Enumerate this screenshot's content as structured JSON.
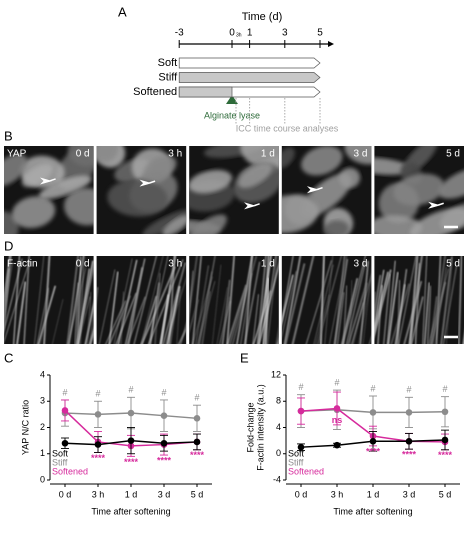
{
  "timeline": {
    "panel": "A",
    "title": "Time (d)",
    "ticks": [
      -3,
      0,
      1,
      3,
      5
    ],
    "zero_note": "3h",
    "rows": [
      "Soft",
      "Stiff",
      "Softened"
    ],
    "treatment": "Alginate lyase",
    "analysis": "ICC time course analyses"
  },
  "micrographs": [
    {
      "panel": "B",
      "stain": "YAP",
      "times": [
        "0 d",
        "3 h",
        "1 d",
        "3 d",
        "5 d"
      ]
    },
    {
      "panel": "D",
      "stain": "F-actin",
      "times": [
        "0 d",
        "3 h",
        "1 d",
        "3 d",
        "5 d"
      ]
    }
  ],
  "chart_data": [
    {
      "type": "line",
      "panel": "C",
      "ylabel": [
        "YAP N/C ratio"
      ],
      "xlabel": "Time after softening",
      "categories": [
        "0 d",
        "3 h",
        "1 d",
        "3 d",
        "5 d"
      ],
      "ylim": [
        0,
        4
      ],
      "yticks": [
        0,
        1,
        2,
        3,
        4
      ],
      "series": [
        {
          "name": "Soft",
          "color": "#000000",
          "values": [
            1.4,
            1.35,
            1.5,
            1.4,
            1.45
          ],
          "errors": [
            0.2,
            0.3,
            0.5,
            0.3,
            0.3
          ]
        },
        {
          "name": "Stiff",
          "color": "#8c8c8c",
          "values": [
            2.55,
            2.5,
            2.55,
            2.45,
            2.35
          ],
          "errors": [
            0.5,
            0.5,
            0.6,
            0.6,
            0.5
          ]
        },
        {
          "name": "Softened",
          "color": "#d62a9c",
          "values": [
            2.65,
            1.45,
            1.3,
            1.35,
            1.45
          ],
          "errors": [
            0.4,
            0.4,
            0.4,
            0.4,
            0.3
          ]
        }
      ],
      "sig_top": [
        "#",
        "#",
        "#",
        "#",
        "#"
      ],
      "sig_bottom": [
        null,
        "****",
        "****",
        "****",
        "****"
      ]
    },
    {
      "type": "line",
      "panel": "E",
      "ylabel": [
        "Fold-change",
        "F-actin intensity (a.u.)"
      ],
      "xlabel": "Time after softening",
      "categories": [
        "0 d",
        "3 h",
        "1 d",
        "3 d",
        "5 d"
      ],
      "ylim": [
        -4,
        12
      ],
      "yticks": [
        -4,
        0,
        4,
        8,
        12
      ],
      "series": [
        {
          "name": "Soft",
          "color": "#000000",
          "values": [
            1.0,
            1.3,
            1.9,
            1.9,
            2.1
          ],
          "errors": [
            0.5,
            0.3,
            1.5,
            1.2,
            1.5
          ]
        },
        {
          "name": "Stiff",
          "color": "#8c8c8c",
          "values": [
            6.5,
            6.7,
            6.3,
            6.3,
            6.4
          ],
          "errors": [
            2.5,
            3.0,
            2.5,
            2.3,
            2.3
          ]
        },
        {
          "name": "Softened",
          "color": "#d62a9c",
          "values": [
            6.5,
            6.9,
            2.7,
            1.9,
            1.8
          ],
          "errors": [
            2.0,
            2.5,
            1.5,
            1.2,
            1.2
          ]
        }
      ],
      "sig_top": [
        "#",
        "#",
        "#",
        "#",
        "#"
      ],
      "sig_bottom": [
        null,
        "ns",
        "****",
        "****",
        "****"
      ]
    }
  ]
}
